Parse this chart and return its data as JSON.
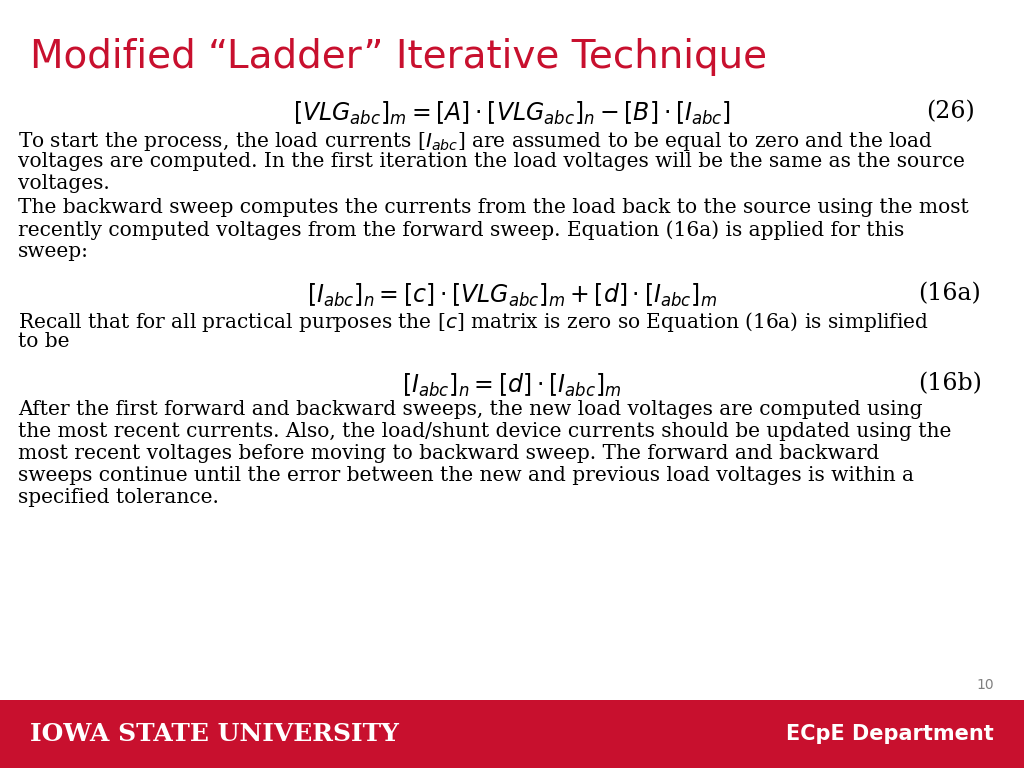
{
  "title": "Modified “Ladder” Iterative Technique",
  "title_color": "#C8102E",
  "title_fontsize": 28,
  "background_color": "#FFFFFF",
  "footer_color": "#C8102E",
  "footer_university": "Iowa State University",
  "footer_dept": "ECpE Department",
  "footer_text_color": "#FFFFFF",
  "page_number": "10",
  "eq26_label": "(26)",
  "eq16a_label": "(16a)",
  "eq16b_label": "(16b)",
  "body_fontsize": 14.5,
  "eq_fontsize": 17,
  "label_fontsize": 17,
  "para1": "To start the process, the load currents [$I_{abc}$] are assumed to be equal to zero and the load voltages are computed. In the first iteration the load voltages will be the same as the source voltages.",
  "para2": "The backward sweep computes the currents from the load back to the source using the most recently computed voltages from the forward sweep. Equation (16a) is applied for this sweep:",
  "para3": "Recall that for all practical purposes the [$c$] matrix is zero so Equation (16a) is simplified to be",
  "para4": "After the first forward and backward sweeps, the new load voltages are computed using the most recent currents. Also, the load/shunt device currents should be updated using the most recent voltages before moving to backward sweep. The forward and backward sweeps continue until the error between the new and previous load voltages is within a specified tolerance."
}
